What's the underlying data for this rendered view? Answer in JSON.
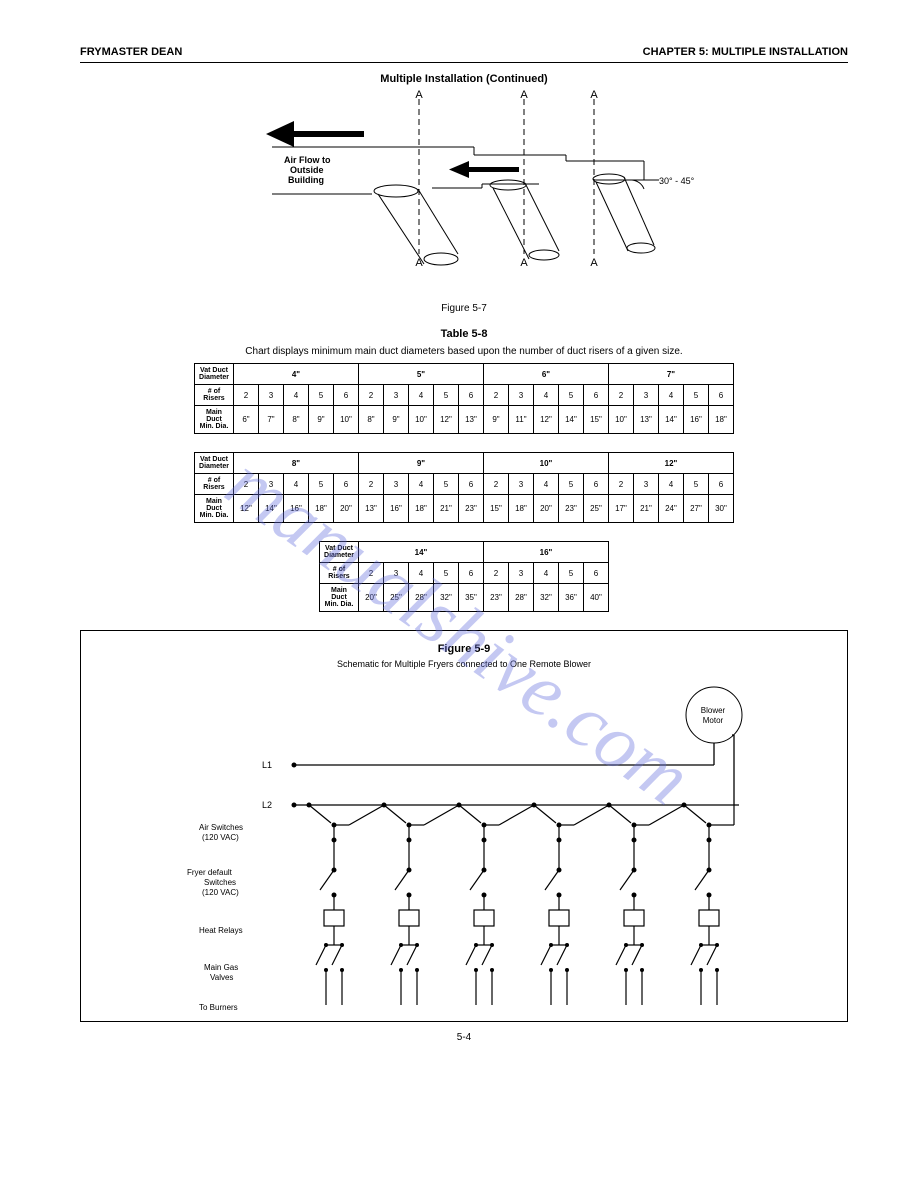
{
  "header": {
    "left": "FRYMASTER DEAN",
    "right": "CHAPTER 5: MULTIPLE INSTALLATION"
  },
  "fig57": {
    "title": "Multiple Installation (Continued)",
    "caption": "Figure 5-7",
    "airflow_label": "Air Flow to\nOutside\nBuilding",
    "angle_label": "30° - 45°",
    "section_label": "A"
  },
  "table58": {
    "title": "Table 5-8",
    "subtitle": "Chart displays minimum main duct diameters based upon the number of duct risers of a given size.",
    "row_labels": [
      "Vat Duct Diameter",
      "Main Duct Minimum Diameter"
    ],
    "groups": [
      {
        "size": "4\"",
        "counts": [
          2,
          3,
          4,
          5,
          6
        ],
        "mains": [
          "6\"",
          "7\"",
          "8\"",
          "9\"",
          "10\""
        ]
      },
      {
        "size": "5\"",
        "counts": [
          2,
          3,
          4,
          5,
          6
        ],
        "mains": [
          "8\"",
          "9\"",
          "10\"",
          "12\"",
          "13\""
        ]
      },
      {
        "size": "6\"",
        "counts": [
          2,
          3,
          4,
          5,
          6
        ],
        "mains": [
          "9\"",
          "11\"",
          "12\"",
          "14\"",
          "15\""
        ]
      },
      {
        "size": "7\"",
        "counts": [
          2,
          3,
          4,
          5,
          6
        ],
        "mains": [
          "10\"",
          "13\"",
          "14\"",
          "16\"",
          "18\""
        ]
      },
      {
        "size": "8\"",
        "counts": [
          2,
          3,
          4,
          5,
          6
        ],
        "mains": [
          "12\"",
          "14\"",
          "16\"",
          "18\"",
          "20\""
        ]
      },
      {
        "size": "9\"",
        "counts": [
          2,
          3,
          4,
          5,
          6
        ],
        "mains": [
          "13\"",
          "16\"",
          "18\"",
          "21\"",
          "23\""
        ]
      },
      {
        "size": "10\"",
        "counts": [
          2,
          3,
          4,
          5,
          6
        ],
        "mains": [
          "15\"",
          "18\"",
          "20\"",
          "23\"",
          "25\""
        ]
      },
      {
        "size": "12\"",
        "counts": [
          2,
          3,
          4,
          5,
          6
        ],
        "mains": [
          "17\"",
          "21\"",
          "24\"",
          "27\"",
          "30\""
        ]
      },
      {
        "size": "14\"",
        "counts": [
          2,
          3,
          4,
          5,
          6
        ],
        "mains": [
          "20\"",
          "25\"",
          "28\"",
          "32\"",
          "35\""
        ]
      },
      {
        "size": "16\"",
        "counts": [
          2,
          3,
          4,
          5,
          6
        ],
        "mains": [
          "23\"",
          "28\"",
          "32\"",
          "36\"",
          "40\""
        ]
      }
    ]
  },
  "schematic": {
    "title": "Figure 5-9",
    "subtitle": "Schematic for Multiple Fryers connected to One Remote Blower",
    "labels": {
      "L1": "L1",
      "L2": "L2",
      "blower": "Blower Motor",
      "air_switches": "Air Switches (120 VAC)",
      "fryer_defaults": "Fryer default Switches (120 VAC)",
      "heat_relays": "Heat Relays",
      "gas_valves": "Main Gas Valves",
      "burners": "To Burners"
    },
    "colors": {
      "line": "#000000",
      "bg": "#ffffff"
    }
  },
  "page_number": "5-4",
  "watermark": "manualshive.com"
}
